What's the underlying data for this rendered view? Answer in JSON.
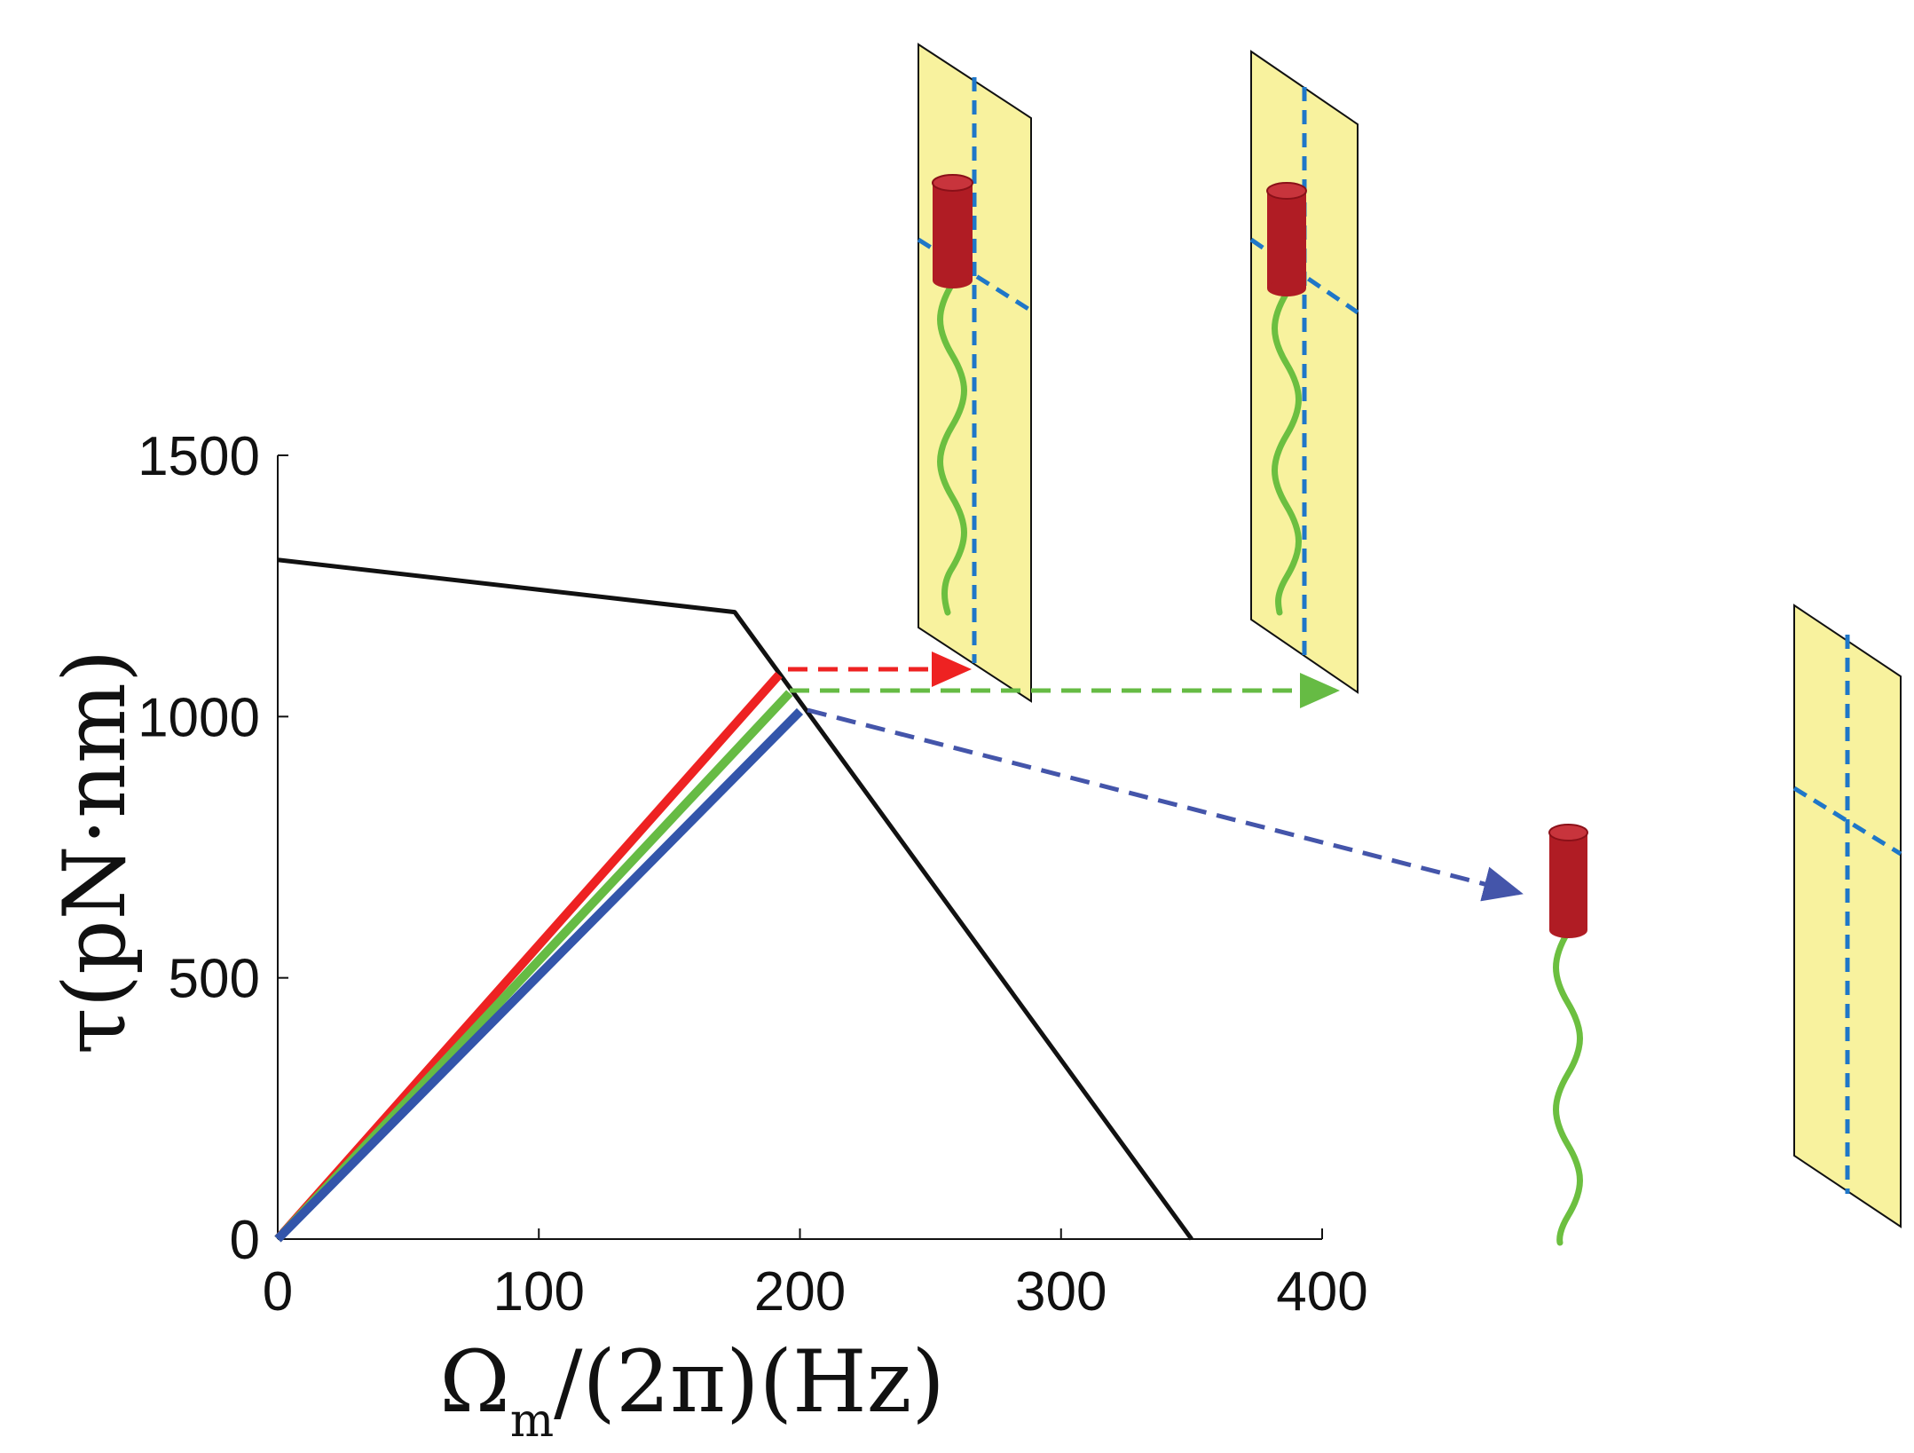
{
  "chart_data": {
    "type": "line",
    "xlabel": "Ω",
    "xlabel_sub": "m",
    "xlabel_rest": "/(2π)(Hz)",
    "ylabel": "τ(pN·nm)",
    "xlim": [
      0,
      400
    ],
    "ylim": [
      0,
      1500
    ],
    "x_ticks": [
      0,
      100,
      200,
      300,
      400
    ],
    "y_ticks": [
      0,
      500,
      1000,
      1500
    ],
    "grid": false,
    "series": [
      {
        "color": "#111111",
        "points": [
          [
            0,
            1300
          ],
          [
            175,
            1200
          ],
          [
            350,
            0
          ]
        ]
      },
      {
        "color": "#ee2222",
        "points": [
          [
            0,
            0
          ],
          [
            192,
            1080
          ]
        ]
      },
      {
        "color": "#66bb44",
        "points": [
          [
            0,
            0
          ],
          [
            196,
            1045
          ]
        ]
      },
      {
        "color": "#3355aa",
        "points": [
          [
            0,
            0
          ],
          [
            200,
            1010
          ]
        ]
      }
    ],
    "annotations": [
      {
        "type": "dashed-arrow",
        "color": "#ee2222",
        "from": [
          195,
          1085
        ],
        "to_panel": "top-left"
      },
      {
        "type": "dashed-arrow",
        "color": "#66bb44",
        "from": [
          198,
          1050
        ],
        "to_panel": "top-right"
      },
      {
        "type": "dashed-arrow",
        "color": "#4455aa",
        "from": [
          203,
          1015
        ],
        "to_panel": "bottom-right"
      }
    ],
    "insets": [
      {
        "name": "top-left",
        "depicts": "bacterium with flagellum attached to yellow surface"
      },
      {
        "name": "top-right",
        "depicts": "bacterium with flagellum attached to yellow surface"
      },
      {
        "name": "bottom-right",
        "depicts": "bacterium detached from yellow surface"
      }
    ]
  },
  "colors": {
    "plane_fill": "#f8f29e",
    "dashed_axis": "#1f77c8",
    "cell_body": "#b01c24",
    "flagellum": "#6cbf40"
  }
}
